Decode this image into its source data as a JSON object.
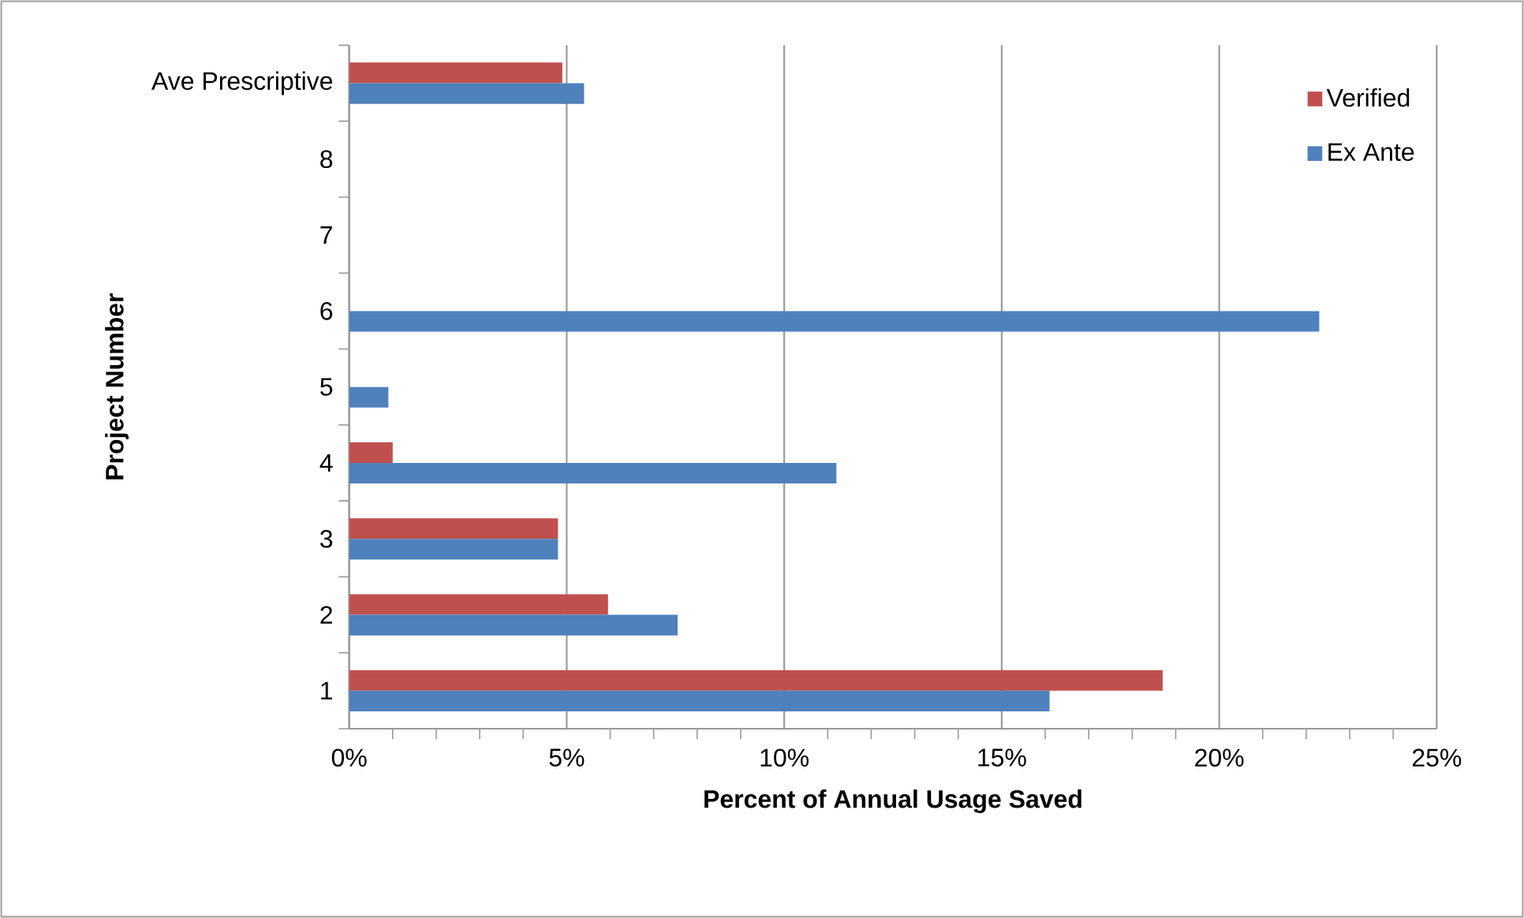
{
  "chart_data": {
    "type": "bar",
    "orientation": "horizontal",
    "xlabel": "Percent of Annual Usage Saved",
    "ylabel": "Project Number",
    "categories": [
      "Ave Prescriptive",
      "8",
      "7",
      "6",
      "5",
      "4",
      "3",
      "2",
      "1"
    ],
    "series": [
      {
        "name": "Verified",
        "color": "#c0504d",
        "values": [
          4.9,
          null,
          null,
          null,
          null,
          1.0,
          4.8,
          5.95,
          18.7
        ]
      },
      {
        "name": "Ex Ante",
        "color": "#4f81bd",
        "values": [
          5.4,
          null,
          null,
          22.3,
          0.9,
          11.2,
          4.8,
          7.55,
          16.1
        ]
      }
    ],
    "xlim": [
      0,
      25
    ],
    "xticks": [
      {
        "value": 0,
        "label": "0%"
      },
      {
        "value": 1,
        "label": null
      },
      {
        "value": 2,
        "label": null
      },
      {
        "value": 3,
        "label": null
      },
      {
        "value": 4,
        "label": null
      },
      {
        "value": 5,
        "label": "5%"
      },
      {
        "value": 6,
        "label": null
      },
      {
        "value": 7,
        "label": null
      },
      {
        "value": 8,
        "label": null
      },
      {
        "value": 9,
        "label": null
      },
      {
        "value": 10,
        "label": "10%"
      },
      {
        "value": 11,
        "label": null
      },
      {
        "value": 12,
        "label": null
      },
      {
        "value": 13,
        "label": null
      },
      {
        "value": 14,
        "label": null
      },
      {
        "value": 15,
        "label": "15%"
      },
      {
        "value": 16,
        "label": null
      },
      {
        "value": 17,
        "label": null
      },
      {
        "value": 18,
        "label": null
      },
      {
        "value": 19,
        "label": null
      },
      {
        "value": 20,
        "label": "20%"
      },
      {
        "value": 21,
        "label": null
      },
      {
        "value": 22,
        "label": null
      },
      {
        "value": 23,
        "label": null
      },
      {
        "value": 24,
        "label": null
      },
      {
        "value": 25,
        "label": "25%"
      }
    ],
    "grid": "x",
    "legend": "top right"
  }
}
